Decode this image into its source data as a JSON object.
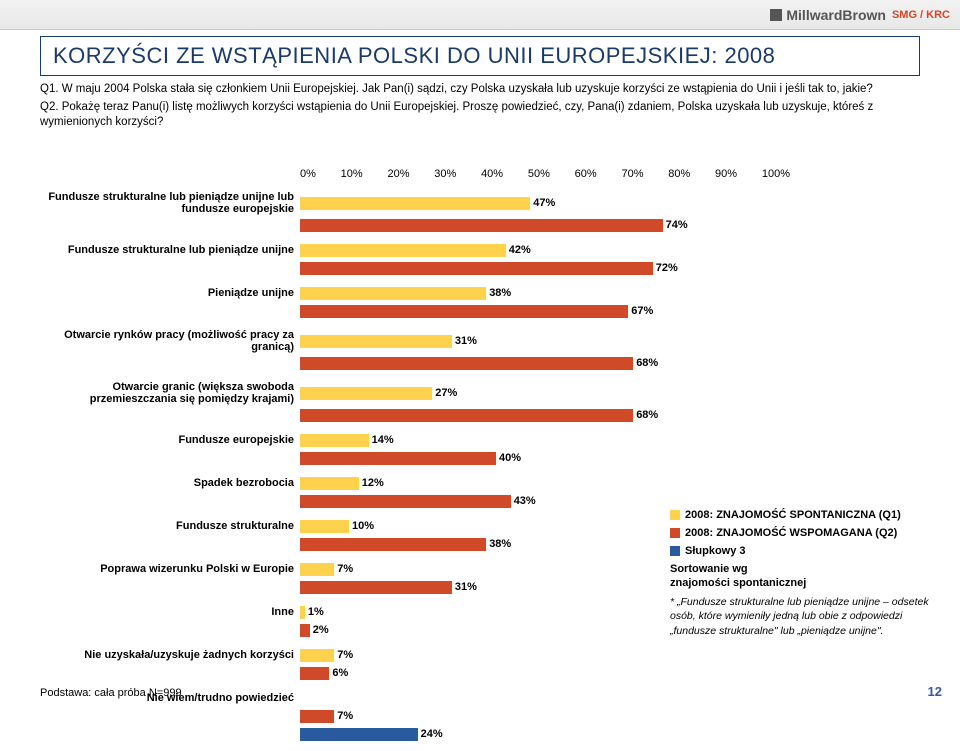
{
  "logo": {
    "main": "MillwardBrown",
    "sub": "SMG / KRC"
  },
  "title": "KORZYŚCI ZE WSTĄPIENIA POLSKI DO UNII EUROPEJSKIEJ: 2008",
  "intro": {
    "p1": "Q1. W maju 2004 Polska stała się członkiem Unii Europejskiej. Jak Pan(i) sądzi, czy Polska uzyskała lub uzyskuje korzyści ze wstąpienia do Unii i jeśli tak to, jakie?",
    "p2": "Q2. Pokażę teraz Panu(i) listę możliwych korzyści wstąpienia do Unii Europejskiej. Proszę powiedzieć, czy, Pana(i) zdaniem, Polska uzyskała lub uzyskuje, któreś z wymienionych korzyści?"
  },
  "axis": {
    "ticks": [
      "0%",
      "10%",
      "20%",
      "30%",
      "40%",
      "50%",
      "60%",
      "70%",
      "80%",
      "90%",
      "100%"
    ]
  },
  "colors": {
    "s1": "#ffd24d",
    "s2": "#d04a2a",
    "s3": "#2a5a9e"
  },
  "series": {
    "s1_label": "2008: ZNAJOMOŚĆ SPONTANICZNA (Q1)",
    "s2_label": "2008: ZNAJOMOŚĆ WSPOMAGANA (Q2)",
    "s3_label": "Słupkowy 3",
    "sort_note1": "Sortowanie wg",
    "sort_note2": "znajomości spontanicznej",
    "footnote": "* „Fundusze strukturalne lub pieniądze unijne – odsetek osób, które wymieniły jedną lub obie z odpowiedzi „fundusze strukturalne\" lub „pieniądze unijne\"."
  },
  "rows": [
    {
      "label": "Fundusze strukturalne lub pieniądze unijne lub fundusze europejskie",
      "s1": 47,
      "s2": 74,
      "s3": null,
      "multi": true
    },
    {
      "label": "Fundusze strukturalne lub pieniądze unijne",
      "s1": 42,
      "s2": 72,
      "s3": null
    },
    {
      "label": "Pieniądze unijne",
      "s1": 38,
      "s2": 67,
      "s3": null
    },
    {
      "label": "Otwarcie rynków pracy (możliwość pracy za granicą)",
      "s1": 31,
      "s2": 68,
      "s3": null,
      "multi": true
    },
    {
      "label": "Otwarcie granic (większa swoboda przemieszczania się pomiędzy krajami)",
      "s1": 27,
      "s2": 68,
      "s3": null,
      "multi": true
    },
    {
      "label": "Fundusze europejskie",
      "s1": 14,
      "s2": 40,
      "s3": null
    },
    {
      "label": "Spadek bezrobocia",
      "s1": 12,
      "s2": 43,
      "s3": null
    },
    {
      "label": "Fundusze strukturalne",
      "s1": 10,
      "s2": 38,
      "s3": null
    },
    {
      "label": "Poprawa wizerunku Polski w Europie",
      "s1": 7,
      "s2": 31,
      "s3": null
    },
    {
      "label": "Inne",
      "s1": 1,
      "s2": 2,
      "s3": null
    },
    {
      "label": "Nie uzyskała/uzyskuje żadnych korzyści",
      "s1": 7,
      "s2": 6,
      "s3": null
    },
    {
      "label": "Nie wiem/trudno powiedzieć",
      "s1": null,
      "s2": 7,
      "s3": 24
    }
  ],
  "basis": "Podstawa: cała próba N=999",
  "pagenum": "12"
}
